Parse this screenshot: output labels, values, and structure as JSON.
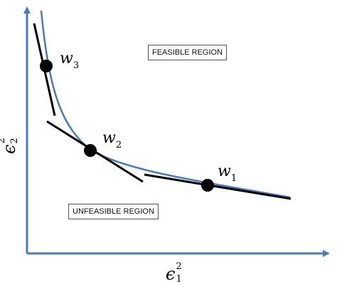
{
  "regions": {
    "feasible": "FEASIBLE REGION",
    "unfeasible": "UNFEASIBLE REGION"
  },
  "points": [
    {
      "symbol": "w",
      "index": "3"
    },
    {
      "symbol": "w",
      "index": "2"
    },
    {
      "symbol": "w",
      "index": "1"
    }
  ],
  "axes": {
    "x": {
      "symbol": "ϵ",
      "sub": "1",
      "sup": "2"
    },
    "y": {
      "symbol": "ϵ",
      "sub": "2",
      "sup": "2"
    }
  },
  "colors": {
    "axis": "#4a7ab8",
    "curve": "#4a7ab8",
    "tangent": "#000000",
    "point": "#000000"
  }
}
